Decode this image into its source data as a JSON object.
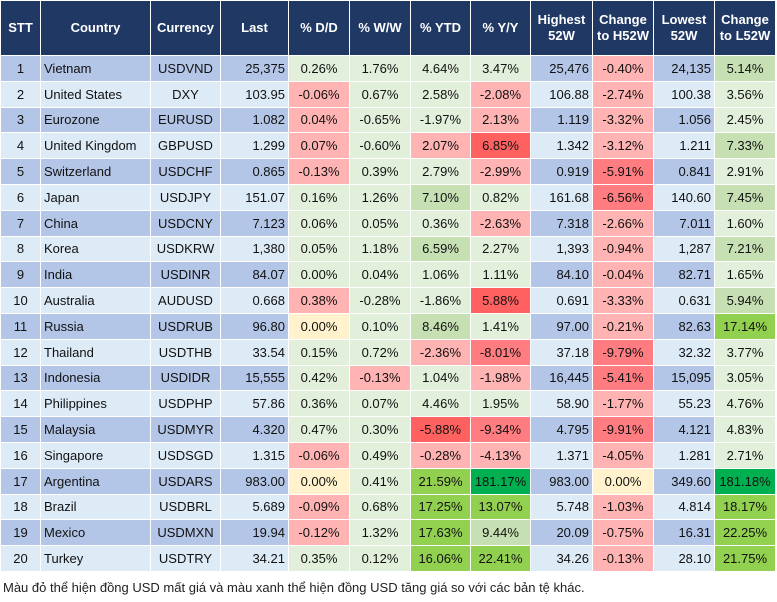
{
  "headers": [
    "STT",
    "Country",
    "Currency",
    "Last",
    "% D/D",
    "% W/W",
    "% YTD",
    "% Y/Y",
    "Highest 52W",
    "Change to H52W",
    "Lowest 52W",
    "Change to L52W"
  ],
  "colors": {
    "header": "#203864",
    "row_odd": "#b4c6e7",
    "row_even": "#ddebf7",
    "g": "#e2efda",
    "G": "#c6e0b4",
    "B": "#92d050",
    "D": "#00b050",
    "p": "#ffb3b3",
    "r": "#ff7c80",
    "R": "#ff6161",
    "y": "#fff2cc"
  },
  "rows": [
    {
      "cells": [
        "1",
        "Vietnam",
        "USDVND",
        "25,375",
        "0.26%",
        "1.76%",
        "4.64%",
        "3.47%",
        "25,476",
        "-0.40%",
        "24,135",
        "5.14%"
      ],
      "heat": "ggggpG"
    },
    {
      "cells": [
        "2",
        "United States",
        "DXY",
        "103.95",
        "-0.06%",
        "0.67%",
        "2.58%",
        "-2.08%",
        "106.88",
        "-2.74%",
        "100.38",
        "3.56%"
      ],
      "heat": "pggppg"
    },
    {
      "cells": [
        "3",
        "Eurozone",
        "EURUSD",
        "1.082",
        "0.04%",
        "-0.65%",
        "-1.97%",
        "2.13%",
        "1.119",
        "-3.32%",
        "1.056",
        "2.45%"
      ],
      "heat": "pggppg"
    },
    {
      "cells": [
        "4",
        "United Kingdom",
        "GBPUSD",
        "1.299",
        "0.07%",
        "-0.60%",
        "2.07%",
        "6.85%",
        "1.342",
        "-3.12%",
        "1.211",
        "7.33%"
      ],
      "heat": "pgpRpG"
    },
    {
      "cells": [
        "5",
        "Switzerland",
        "USDCHF",
        "0.865",
        "-0.13%",
        "0.39%",
        "2.79%",
        "-2.99%",
        "0.919",
        "-5.91%",
        "0.841",
        "2.91%"
      ],
      "heat": "pggprg"
    },
    {
      "cells": [
        "6",
        "Japan",
        "USDJPY",
        "151.07",
        "0.16%",
        "1.26%",
        "7.10%",
        "0.82%",
        "161.68",
        "-6.56%",
        "140.60",
        "7.45%"
      ],
      "heat": "ggGgrG"
    },
    {
      "cells": [
        "7",
        "China",
        "USDCNY",
        "7.123",
        "0.06%",
        "0.05%",
        "0.36%",
        "-2.63%",
        "7.318",
        "-2.66%",
        "7.011",
        "1.60%"
      ],
      "heat": "gggppg"
    },
    {
      "cells": [
        "8",
        "Korea",
        "USDKRW",
        "1,380",
        "0.05%",
        "1.18%",
        "6.59%",
        "2.27%",
        "1,393",
        "-0.94%",
        "1,287",
        "7.21%"
      ],
      "heat": "ggGgpG"
    },
    {
      "cells": [
        "9",
        "India",
        "USDINR",
        "84.07",
        "0.00%",
        "0.04%",
        "1.06%",
        "1.11%",
        "84.10",
        "-0.04%",
        "82.71",
        "1.65%"
      ],
      "heat": "ggggpg"
    },
    {
      "cells": [
        "10",
        "Australia",
        "AUDUSD",
        "0.668",
        "0.38%",
        "-0.28%",
        "-1.86%",
        "5.88%",
        "0.691",
        "-3.33%",
        "0.631",
        "5.94%"
      ],
      "heat": "pggRpG"
    },
    {
      "cells": [
        "11",
        "Russia",
        "USDRUB",
        "96.80",
        "0.00%",
        "0.10%",
        "8.46%",
        "1.41%",
        "97.00",
        "-0.21%",
        "82.63",
        "17.14%"
      ],
      "heat": "ygGgpB"
    },
    {
      "cells": [
        "12",
        "Thailand",
        "USDTHB",
        "33.54",
        "0.15%",
        "0.72%",
        "-2.36%",
        "-8.01%",
        "37.18",
        "-9.79%",
        "32.32",
        "3.77%"
      ],
      "heat": "ggprrg"
    },
    {
      "cells": [
        "13",
        "Indonesia",
        "USDIDR",
        "15,555",
        "0.42%",
        "-0.13%",
        "1.04%",
        "-1.98%",
        "16,445",
        "-5.41%",
        "15,095",
        "3.05%"
      ],
      "heat": "gpgprg"
    },
    {
      "cells": [
        "14",
        "Philippines",
        "USDPHP",
        "57.86",
        "0.36%",
        "0.07%",
        "4.46%",
        "1.95%",
        "58.90",
        "-1.77%",
        "55.23",
        "4.76%"
      ],
      "heat": "ggggpg"
    },
    {
      "cells": [
        "15",
        "Malaysia",
        "USDMYR",
        "4.320",
        "0.47%",
        "0.30%",
        "-5.88%",
        "-9.34%",
        "4.795",
        "-9.91%",
        "4.121",
        "4.83%"
      ],
      "heat": "ggRrrg"
    },
    {
      "cells": [
        "16",
        "Singapore",
        "USDSGD",
        "1.315",
        "-0.06%",
        "0.49%",
        "-0.28%",
        "-4.13%",
        "1.371",
        "-4.05%",
        "1.281",
        "2.71%"
      ],
      "heat": "pgpppg"
    },
    {
      "cells": [
        "17",
        "Argentina",
        "USDARS",
        "983.00",
        "0.00%",
        "0.41%",
        "21.59%",
        "181.17%",
        "983.00",
        "0.00%",
        "349.60",
        "181.18%"
      ],
      "heat": "ygBDyD"
    },
    {
      "cells": [
        "18",
        "Brazil",
        "USDBRL",
        "5.689",
        "-0.09%",
        "0.68%",
        "17.25%",
        "13.07%",
        "5.748",
        "-1.03%",
        "4.814",
        "18.17%"
      ],
      "heat": "pgBBpB"
    },
    {
      "cells": [
        "19",
        "Mexico",
        "USDMXN",
        "19.94",
        "-0.12%",
        "1.32%",
        "17.63%",
        "9.44%",
        "20.09",
        "-0.75%",
        "16.31",
        "22.25%"
      ],
      "heat": "pgBGpB"
    },
    {
      "cells": [
        "20",
        "Turkey",
        "USDTRY",
        "34.21",
        "0.35%",
        "0.12%",
        "16.06%",
        "22.41%",
        "34.26",
        "-0.13%",
        "28.10",
        "21.75%"
      ],
      "heat": "ggBBpB"
    }
  ],
  "footnote": "Màu đỏ thể hiện đồng USD mất giá và màu xanh thể hiện đồng USD tăng giá so với các bản tệ khác."
}
